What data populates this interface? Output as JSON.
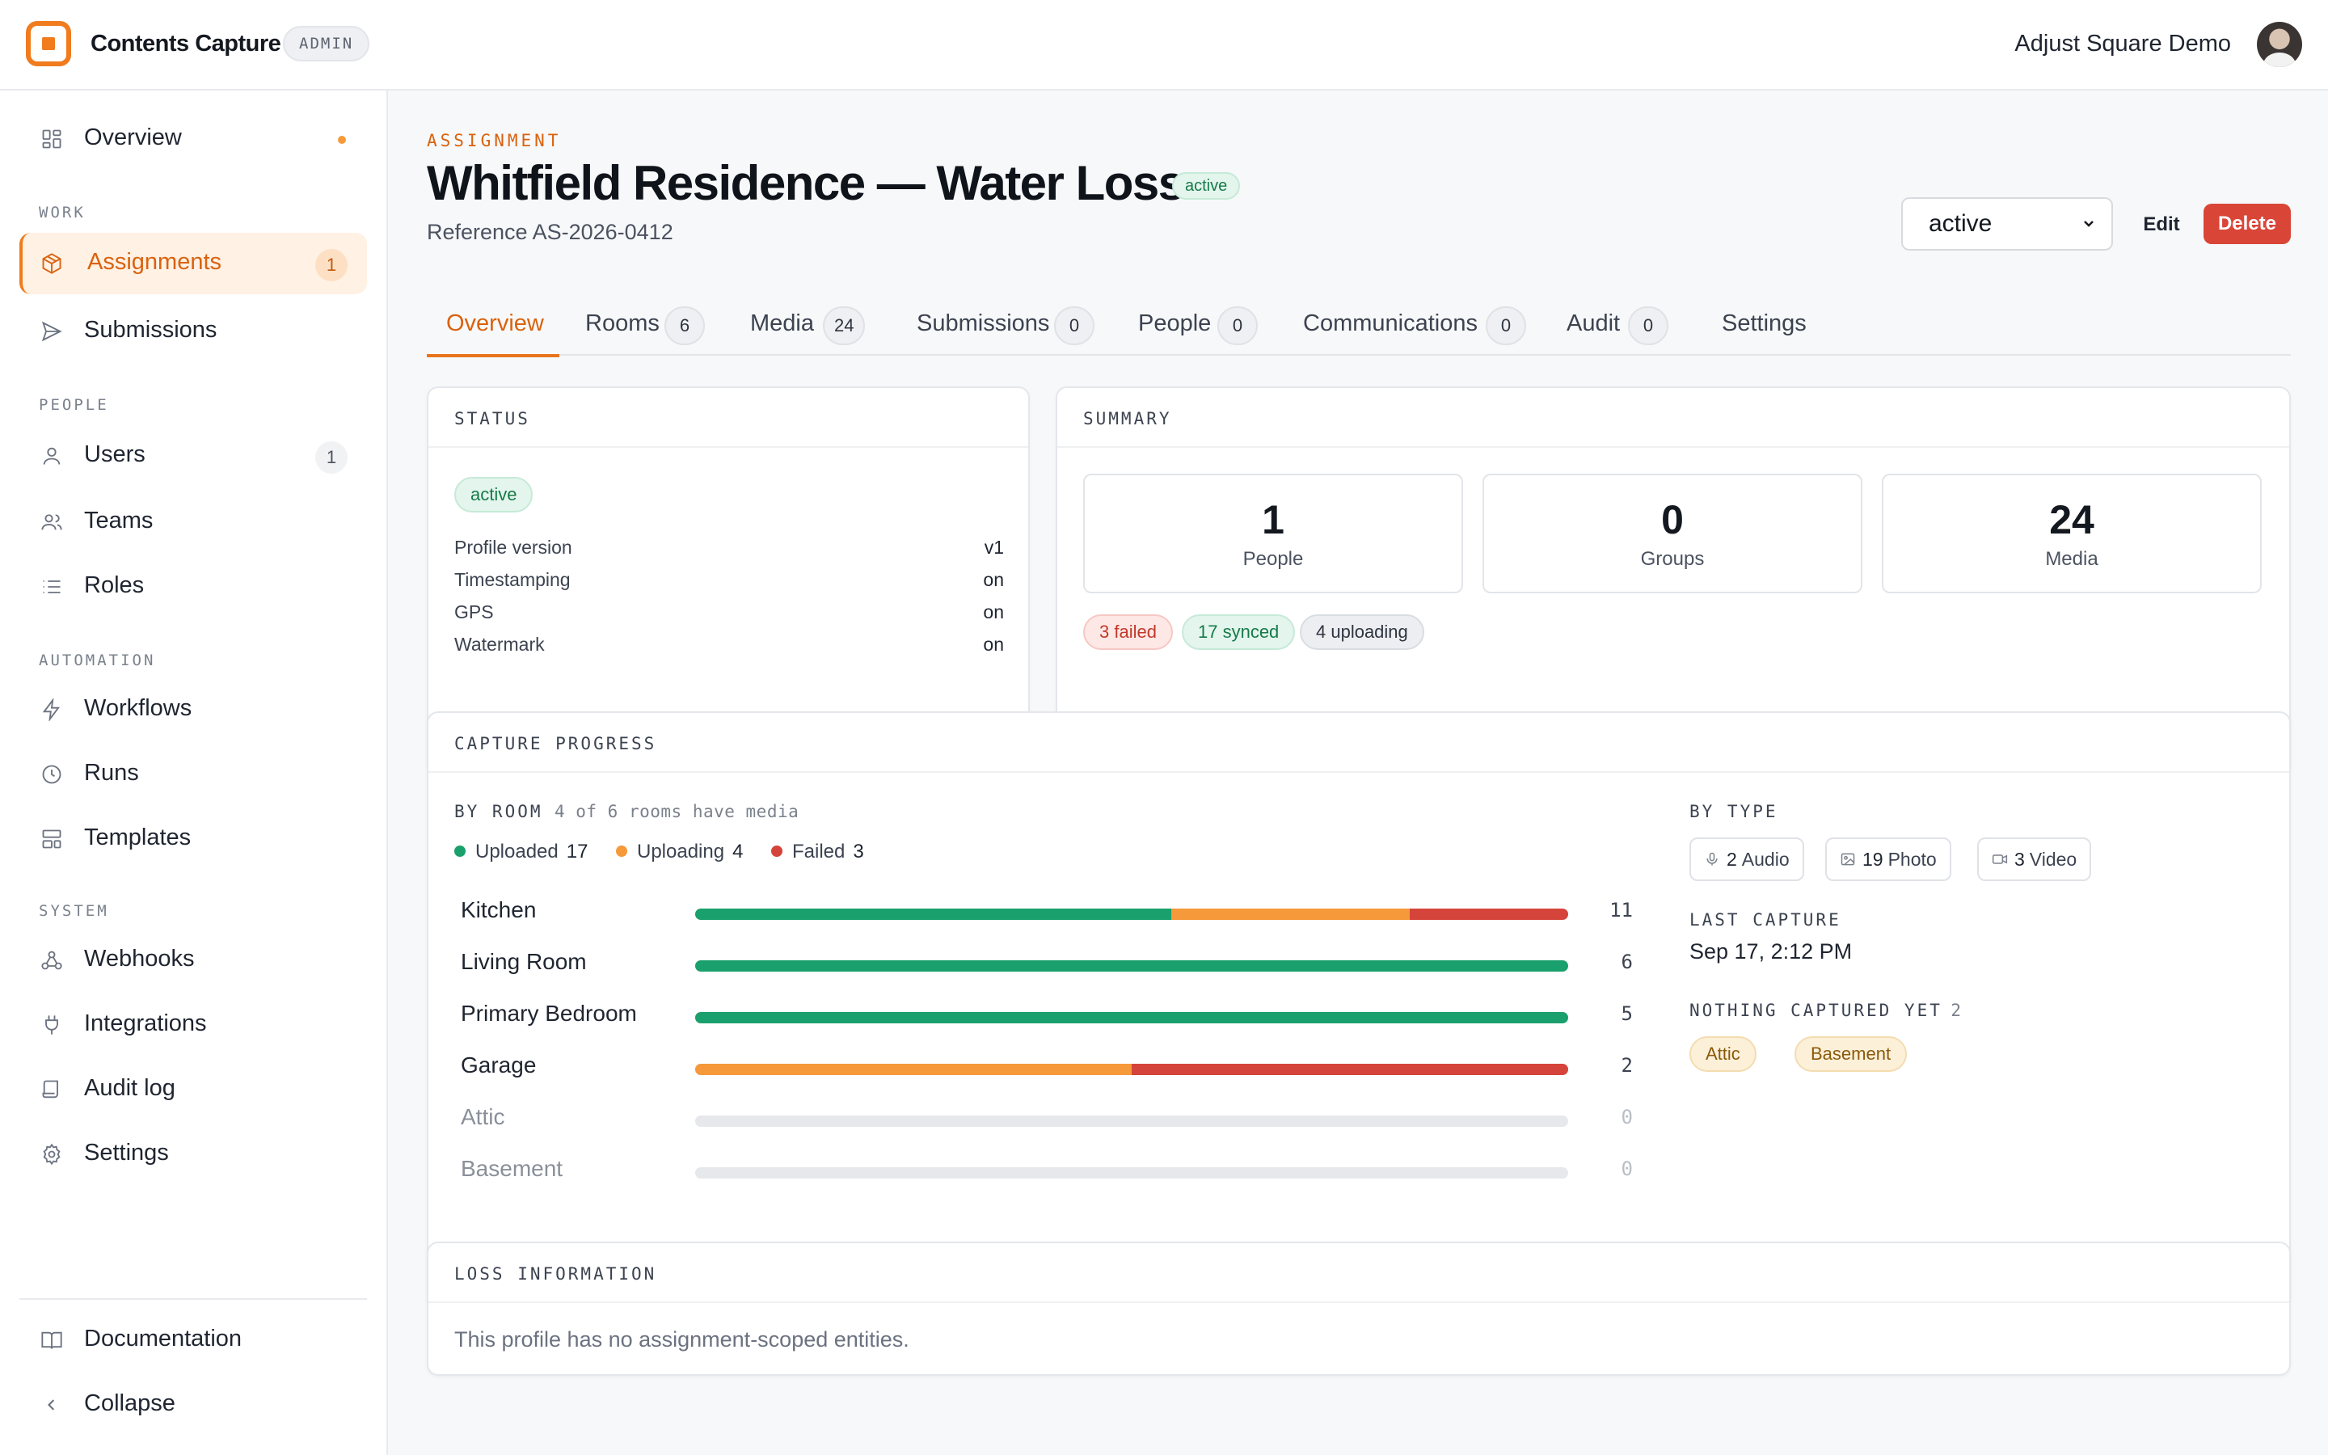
{
  "app": {
    "title": "Contents Capture",
    "badge": "ADMIN",
    "account": "Adjust Square Demo"
  },
  "sidebar": {
    "overview": "Overview",
    "sections": {
      "work": "WORK",
      "people": "PEOPLE",
      "automation": "AUTOMATION",
      "system": "SYSTEM"
    },
    "items": {
      "assignments": {
        "label": "Assignments",
        "count": "1"
      },
      "submissions": {
        "label": "Submissions"
      },
      "users": {
        "label": "Users",
        "count": "1"
      },
      "teams": {
        "label": "Teams"
      },
      "roles": {
        "label": "Roles"
      },
      "workflows": {
        "label": "Workflows"
      },
      "runs": {
        "label": "Runs"
      },
      "templates": {
        "label": "Templates"
      },
      "webhooks": {
        "label": "Webhooks"
      },
      "integrations": {
        "label": "Integrations"
      },
      "audit_log": {
        "label": "Audit log"
      },
      "settings": {
        "label": "Settings"
      }
    },
    "footer": {
      "documentation": "Documentation",
      "collapse": "Collapse"
    }
  },
  "header": {
    "eyebrow": "ASSIGNMENT",
    "title": "Whitfield Residence — Water Loss",
    "status_badge": "active",
    "reference": "Reference AS-2026-0412",
    "status_select": "active",
    "edit": "Edit",
    "delete": "Delete"
  },
  "tabs": [
    {
      "label": "Overview",
      "count": ""
    },
    {
      "label": "Rooms",
      "count": "6"
    },
    {
      "label": "Media",
      "count": "24"
    },
    {
      "label": "Submissions",
      "count": "0"
    },
    {
      "label": "People",
      "count": "0"
    },
    {
      "label": "Communications",
      "count": "0"
    },
    {
      "label": "Audit",
      "count": "0"
    },
    {
      "label": "Settings",
      "count": ""
    }
  ],
  "status_card": {
    "title": "STATUS",
    "badge": "active",
    "rows": [
      {
        "key": "Profile version",
        "value": "v1"
      },
      {
        "key": "Timestamping",
        "value": "on"
      },
      {
        "key": "GPS",
        "value": "on"
      },
      {
        "key": "Watermark",
        "value": "on"
      }
    ]
  },
  "summary_card": {
    "title": "SUMMARY",
    "stats": [
      {
        "value": "1",
        "label": "People"
      },
      {
        "value": "0",
        "label": "Groups"
      },
      {
        "value": "24",
        "label": "Media"
      }
    ],
    "pills": {
      "failed": "3 failed",
      "synced": "17 synced",
      "uploading": "4 uploading"
    }
  },
  "capture_progress": {
    "title": "CAPTURE PROGRESS",
    "by_room_label": "BY ROOM",
    "by_room_note": "4 of 6 rooms have media",
    "legend": [
      {
        "label": "Uploaded",
        "value": "17",
        "color": "#1aa06d"
      },
      {
        "label": "Uploading",
        "value": "4",
        "color": "#f5993a"
      },
      {
        "label": "Failed",
        "value": "3",
        "color": "#d5443a"
      }
    ],
    "rooms": [
      {
        "name": "Kitchen",
        "total": "11",
        "uploaded": 6,
        "uploading": 3,
        "failed": 2
      },
      {
        "name": "Living Room",
        "total": "6",
        "uploaded": 6,
        "uploading": 0,
        "failed": 0
      },
      {
        "name": "Primary Bedroom",
        "total": "5",
        "uploaded": 5,
        "uploading": 0,
        "failed": 0
      },
      {
        "name": "Garage",
        "total": "2",
        "uploaded": 0,
        "uploading": 1,
        "failed": 1
      },
      {
        "name": "Attic",
        "total": "0",
        "uploaded": 0,
        "uploading": 0,
        "failed": 0
      },
      {
        "name": "Basement",
        "total": "0",
        "uploaded": 0,
        "uploading": 0,
        "failed": 0
      }
    ],
    "by_type_label": "BY TYPE",
    "types": [
      {
        "count": "2",
        "label": "Audio",
        "icon": "microphone-icon"
      },
      {
        "count": "19",
        "label": "Photo",
        "icon": "image-icon"
      },
      {
        "count": "3",
        "label": "Video",
        "icon": "video-icon"
      }
    ],
    "last_capture_label": "LAST CAPTURE",
    "last_capture": "Sep 17, 2:12 PM",
    "nothing_captured_label": "NOTHING CAPTURED YET",
    "nothing_captured_count": "2",
    "nothing_captured_rooms": [
      "Attic",
      "Basement"
    ]
  },
  "loss_card": {
    "title": "LOSS INFORMATION",
    "message": "This profile has no assignment-scoped entities."
  }
}
